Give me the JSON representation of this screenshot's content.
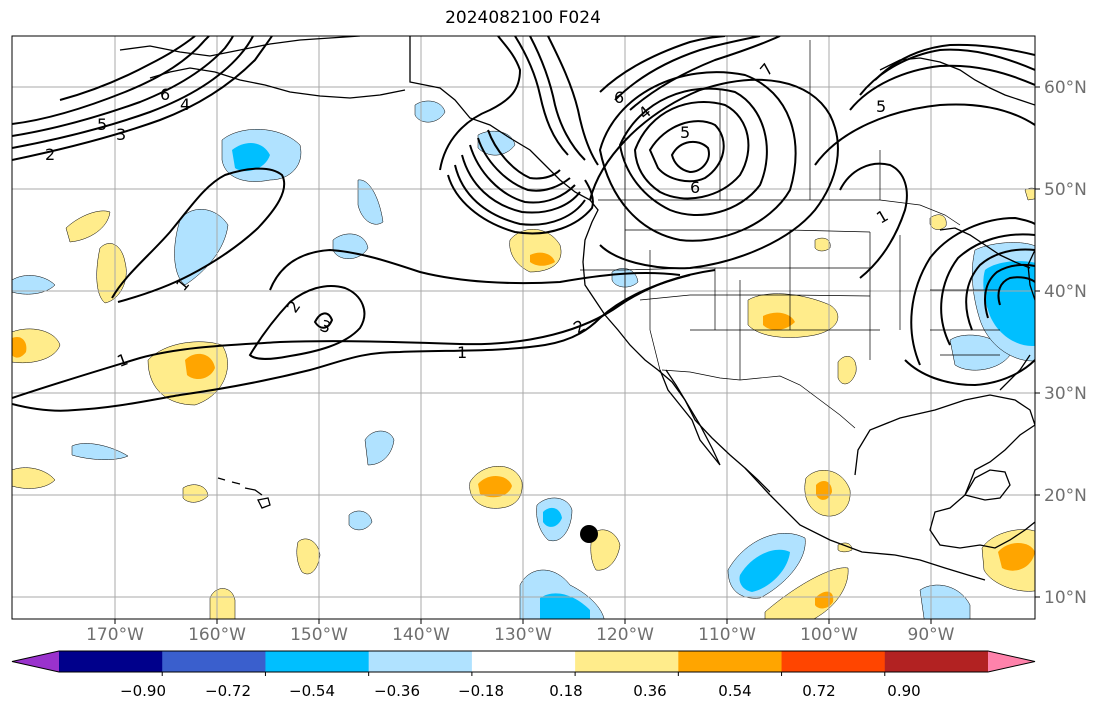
{
  "title": "2024082100 F024",
  "lon_labels": [
    "170°W",
    "160°W",
    "150°W",
    "140°W",
    "130°W",
    "120°W",
    "110°W",
    "100°W",
    "90°W"
  ],
  "lat_labels": [
    "60°N",
    "50°N",
    "40°N",
    "30°N",
    "20°N",
    "10°N"
  ],
  "colorbar": {
    "ticks": [
      "−0.90",
      "−0.72",
      "−0.54",
      "−0.36",
      "−0.18",
      "0.18",
      "0.36",
      "0.54",
      "0.72",
      "0.90"
    ],
    "colors": [
      "#9a32cd",
      "#00008b",
      "#3a5fcd",
      "#00bfff",
      "#b0e2ff",
      "#ffffff",
      "#ffec8b",
      "#ffa500",
      "#ff4500",
      "#b22222",
      "#ff82ab"
    ]
  },
  "contour_labels": [
    "1",
    "1",
    "1",
    "1",
    "2",
    "2",
    "2",
    "3",
    "3",
    "4",
    "4",
    "5",
    "5",
    "5",
    "6",
    "6",
    "6",
    "7"
  ],
  "marker": "storm-center-dot"
}
